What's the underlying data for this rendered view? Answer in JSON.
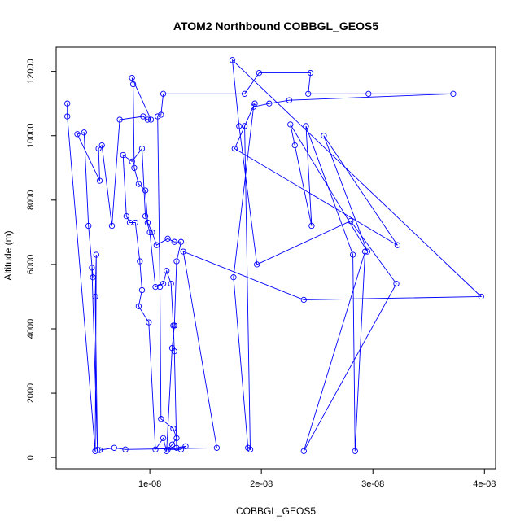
{
  "chart_data": {
    "type": "line",
    "title": "ATOM2 Northbound COBBGL_GEOS5",
    "xlabel": "COBBGL_GEOS5",
    "ylabel": "Altitude (m)",
    "xlim": [
      1.6e-09,
      4.1e-08
    ],
    "ylim": [
      -350,
      12750
    ],
    "x_ticks": [
      1e-08,
      2e-08,
      3e-08,
      4e-08
    ],
    "x_tick_labels": [
      "1e-08",
      "2e-08",
      "3e-08",
      "4e-08"
    ],
    "y_ticks": [
      0,
      2000,
      4000,
      6000,
      8000,
      10000,
      12000
    ],
    "y_tick_labels": [
      "0",
      "2000",
      "4000",
      "6000",
      "8000",
      "10000",
      "12000"
    ],
    "grid": false,
    "series_color": "#0000ff",
    "series": [
      {
        "points": [
          [
            2.6e-09,
            11000
          ],
          [
            2.6e-09,
            10600
          ],
          [
            5.1e-09,
            200
          ],
          [
            5.2e-09,
            6300
          ],
          [
            5.1e-09,
            5000
          ],
          [
            5.3e-09,
            240
          ],
          [
            4.8e-09,
            5900
          ],
          [
            4.9e-09,
            5600
          ],
          [
            4.5e-09,
            7200
          ],
          [
            4.1e-09,
            10100
          ],
          [
            3.5e-09,
            10050
          ],
          [
            5.5e-09,
            8600
          ],
          [
            5.4e-09,
            9600
          ],
          [
            5.7e-09,
            9700
          ],
          [
            6.6e-09,
            7200
          ],
          [
            7.3e-09,
            10500
          ],
          [
            9.4e-09,
            10600
          ],
          [
            9.8e-09,
            10500
          ],
          [
            1.01e-08,
            10500
          ],
          [
            8.4e-09,
            11800
          ],
          [
            8.5e-09,
            11600
          ],
          [
            8.6e-09,
            9000
          ],
          [
            9e-09,
            8500
          ],
          [
            9.6e-09,
            8300
          ],
          [
            9.8e-09,
            7300
          ],
          [
            1.02e-08,
            7000
          ],
          [
            1.06e-08,
            6600
          ],
          [
            1.16e-08,
            6800
          ],
          [
            1.22e-08,
            6700
          ],
          [
            1.28e-08,
            6700
          ],
          [
            1.24e-08,
            6100
          ],
          [
            1.22e-08,
            4100
          ],
          [
            1.2e-08,
            3400
          ],
          [
            1.15e-08,
            200
          ],
          [
            1.12e-08,
            600
          ],
          [
            1.05e-08,
            250
          ],
          [
            9.9e-09,
            4200
          ],
          [
            9e-09,
            4700
          ],
          [
            9.3e-09,
            5200
          ],
          [
            9.1e-09,
            6100
          ],
          [
            8.7e-09,
            7300
          ],
          [
            8.2e-09,
            7300
          ],
          [
            7.9e-09,
            7500
          ],
          [
            7.6e-09,
            9400
          ],
          [
            8.4e-09,
            9200
          ],
          [
            9.3e-09,
            9600
          ],
          [
            9.6e-09,
            7500
          ],
          [
            1e-08,
            7000
          ],
          [
            1.05e-08,
            5300
          ],
          [
            1.12e-08,
            5400
          ],
          [
            1.15e-08,
            5800
          ],
          [
            1.19e-08,
            5400
          ],
          [
            1.21e-08,
            4100
          ],
          [
            1.22e-08,
            3300
          ],
          [
            1.24e-08,
            300
          ],
          [
            1.32e-08,
            350
          ],
          [
            1.28e-08,
            250
          ],
          [
            1.16e-08,
            250
          ],
          [
            1.2e-08,
            400
          ],
          [
            1.24e-08,
            600
          ],
          [
            1.21e-08,
            900
          ],
          [
            1.1e-08,
            1200
          ],
          [
            1.09e-08,
            5300
          ],
          [
            1.07e-08,
            10600
          ],
          [
            1.1e-08,
            10650
          ],
          [
            1.12e-08,
            11300
          ],
          [
            1.85e-08,
            11300
          ],
          [
            1.98e-08,
            11950
          ],
          [
            2.44e-08,
            11950
          ],
          [
            2.42e-08,
            11300
          ],
          [
            2.96e-08,
            11300
          ],
          [
            3.72e-08,
            11300
          ],
          [
            2.25e-08,
            11100
          ],
          [
            2.07e-08,
            11000
          ],
          [
            1.93e-08,
            10900
          ],
          [
            1.75e-08,
            5600
          ],
          [
            1.88e-08,
            300
          ],
          [
            1.9e-08,
            250
          ],
          [
            1.85e-08,
            10300
          ],
          [
            1.94e-08,
            11000
          ],
          [
            1.76e-08,
            9600
          ],
          [
            3.22e-08,
            6600
          ],
          [
            2.56e-08,
            10000
          ],
          [
            2.95e-08,
            6400
          ],
          [
            2.26e-08,
            10350
          ],
          [
            2.3e-08,
            9700
          ],
          [
            2.45e-08,
            7200
          ],
          [
            2.4e-08,
            10300
          ],
          [
            2.82e-08,
            6300
          ],
          [
            2.84e-08,
            200
          ],
          [
            2.93e-08,
            6400
          ],
          [
            2.38e-08,
            200
          ],
          [
            3.21e-08,
            5400
          ],
          [
            2.8e-08,
            7350
          ],
          [
            1.96e-08,
            6000
          ],
          [
            1.8e-08,
            10300
          ],
          [
            1.74e-08,
            12350
          ],
          [
            3.97e-08,
            5000
          ],
          [
            2.38e-08,
            4900
          ],
          [
            1.3e-08,
            6400
          ],
          [
            1.6e-08,
            300
          ],
          [
            7.8e-09,
            250
          ],
          [
            6.8e-09,
            300
          ],
          [
            5.5e-09,
            230
          ]
        ]
      }
    ]
  }
}
